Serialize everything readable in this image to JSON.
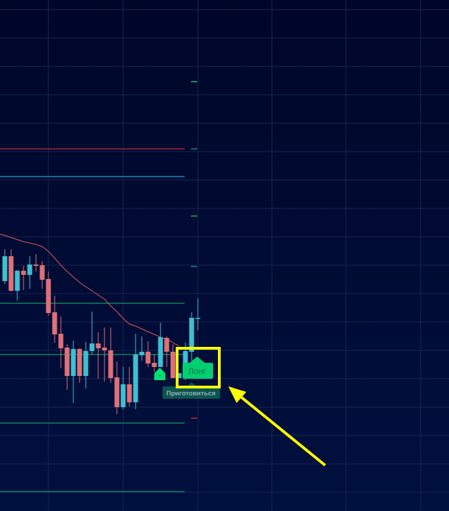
{
  "chart_data": {
    "type": "candlestick",
    "title": "",
    "xlabel": "",
    "ylabel": "",
    "ylim": [
      0,
      738
    ],
    "grid": true,
    "colors": {
      "up": "#3fbfd2",
      "down": "#e07077",
      "ma": "#e05a5f",
      "background": "#000a30",
      "grid": "#1a2550"
    },
    "candles": [
      [
        332,
        378,
        328,
        368
      ],
      [
        368,
        378,
        317,
        318
      ],
      [
        318,
        348,
        304,
        347
      ],
      [
        347,
        354,
        319,
        341
      ],
      [
        341,
        368,
        321,
        356
      ],
      [
        356,
        371,
        346,
        354
      ],
      [
        355,
        361,
        321,
        334
      ],
      [
        335,
        346,
        282,
        286
      ],
      [
        287,
        311,
        243,
        255
      ],
      [
        256,
        281,
        206,
        235
      ],
      [
        236,
        241,
        175,
        195
      ],
      [
        195,
        246,
        156,
        234
      ],
      [
        234,
        235,
        185,
        195
      ],
      [
        195,
        244,
        177,
        231
      ],
      [
        231,
        288,
        226,
        242
      ],
      [
        242,
        258,
        191,
        235
      ],
      [
        236,
        265,
        187,
        232
      ],
      [
        232,
        265,
        185,
        192
      ],
      [
        193,
        216,
        140,
        150
      ],
      [
        150,
        208,
        147,
        183
      ],
      [
        183,
        208,
        151,
        157
      ],
      [
        157,
        256,
        147,
        226
      ],
      [
        225,
        252,
        217,
        230
      ],
      [
        230,
        245,
        208,
        213
      ],
      [
        214,
        226,
        201,
        208
      ],
      [
        208,
        272,
        208,
        251
      ],
      [
        250,
        252,
        208,
        230
      ],
      [
        230,
        241,
        192,
        192
      ],
      [
        192,
        199,
        192,
        199
      ],
      [
        192,
        243,
        189,
        231
      ],
      [
        230,
        287,
        217,
        279
      ],
      [
        279,
        307,
        261,
        279
      ]
    ],
    "moving_average": [
      398,
      395,
      392,
      389,
      387,
      385,
      382,
      375,
      365,
      355,
      346,
      338,
      330,
      324,
      318,
      312,
      306,
      296,
      288,
      278,
      270,
      267,
      263,
      259,
      255,
      251,
      248,
      243,
      238,
      null,
      null,
      null
    ],
    "levels": [
      {
        "value": 523,
        "color": "#c0283a"
      },
      {
        "value": 483,
        "color": "#1f9fd0"
      },
      {
        "value": 300,
        "color": "#0f9a60"
      },
      {
        "value": 226,
        "color": "#0f9a60"
      },
      {
        "value": 127,
        "color": "#0f9a60"
      },
      {
        "value": 28,
        "color": "#0f9a60"
      }
    ],
    "axis_marks": [
      {
        "value": 620,
        "color": "#10c070"
      },
      {
        "value": 523,
        "color": "#0f8a70"
      },
      {
        "value": 426,
        "color": "#10b070"
      },
      {
        "value": 353,
        "color": "#1a8a80"
      },
      {
        "value": 134,
        "color": "#c0283a"
      }
    ],
    "signals": {
      "buy_marker_icon": "up-arrow-pentagon",
      "long_label": "Лонг",
      "long_color": "#00d070",
      "prepare_label": "Приготовиться",
      "prepare_color": "#0a5550"
    },
    "annotation": {
      "highlight_color": "#ffff00",
      "arrow_color": "#ffff00"
    }
  }
}
